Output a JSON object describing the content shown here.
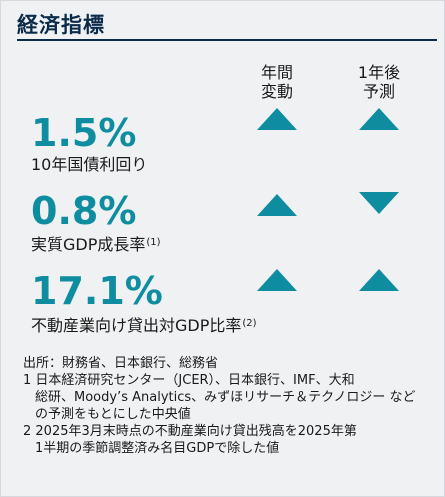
{
  "title": "経済指標",
  "columns": {
    "yoy": [
      "年間",
      "変動"
    ],
    "forecast": [
      "1年後",
      "予測"
    ]
  },
  "indicators": [
    {
      "value": "1.5%",
      "label": "10年国債利回り",
      "note": "",
      "yoy_direction": "up",
      "forecast_direction": "up"
    },
    {
      "value": "0.8%",
      "label": "実質GDP成長率",
      "note": "(1)",
      "yoy_direction": "up",
      "forecast_direction": "down"
    },
    {
      "value": "17.1%",
      "label": "不動産業向け貸出対GDP比率",
      "note": "(2)",
      "yoy_direction": "up",
      "forecast_direction": "up"
    }
  ],
  "notes": {
    "source": "出所：財務省、日本銀行、総務省",
    "note1_line1": "1 日本経済研究センター（JCER）、日本銀行、IMF、大和",
    "note1_line2": "総研、Moody’s Analytics、みずほリサーチ＆テクノロジー など",
    "note1_line3": "の予測をもとにした中央値",
    "note2_line1": "2 2025年3月末時点の不動産業向け貸出残高を2025年第",
    "note2_line2": "1半期の季節調整済み名目GDPで除した値"
  },
  "colors": {
    "accent": "#0e8ca0",
    "title": "#0b2b4a",
    "background": "#eff1f3"
  },
  "icons": {
    "up": "triangle-up-icon",
    "down": "triangle-down-icon"
  }
}
